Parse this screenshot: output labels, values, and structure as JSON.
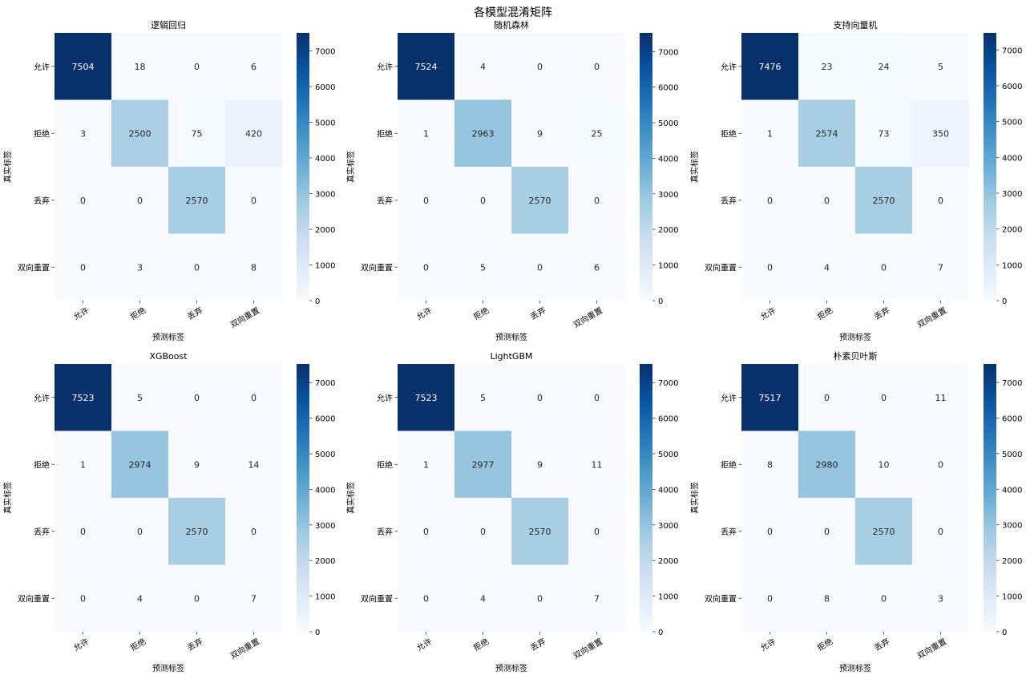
{
  "suptitle": "各模型混淆矩阵",
  "chart_data": [
    {
      "type": "heatmap",
      "title": "逻辑回归",
      "xlabel": "预测标签",
      "ylabel": "真实标签",
      "x_categories": [
        "允许",
        "拒绝",
        "丢弃",
        "双向重置"
      ],
      "y_categories": [
        "允许",
        "拒绝",
        "丢弃",
        "双向重置"
      ],
      "values": [
        [
          7504,
          18,
          0,
          6
        ],
        [
          3,
          2500,
          75,
          420
        ],
        [
          0,
          0,
          2570,
          0
        ],
        [
          0,
          3,
          0,
          8
        ]
      ],
      "colorbar": {
        "min": 0,
        "max": 7504,
        "ticks": [
          "0",
          "1000",
          "2000",
          "3000",
          "4000",
          "5000",
          "6000",
          "7000"
        ]
      },
      "colormap": "Blues"
    },
    {
      "type": "heatmap",
      "title": "随机森林",
      "xlabel": "预测标签",
      "ylabel": "真实标签",
      "x_categories": [
        "允许",
        "拒绝",
        "丢弃",
        "双向重置"
      ],
      "y_categories": [
        "允许",
        "拒绝",
        "丢弃",
        "双向重置"
      ],
      "values": [
        [
          7524,
          4,
          0,
          0
        ],
        [
          1,
          2963,
          9,
          25
        ],
        [
          0,
          0,
          2570,
          0
        ],
        [
          0,
          5,
          0,
          6
        ]
      ],
      "colorbar": {
        "min": 0,
        "max": 7524,
        "ticks": [
          "0",
          "1000",
          "2000",
          "3000",
          "4000",
          "5000",
          "6000",
          "7000"
        ]
      },
      "colormap": "Blues"
    },
    {
      "type": "heatmap",
      "title": "支持向量机",
      "xlabel": "预测标签",
      "ylabel": "真实标签",
      "x_categories": [
        "允许",
        "拒绝",
        "丢弃",
        "双向重置"
      ],
      "y_categories": [
        "允许",
        "拒绝",
        "丢弃",
        "双向重置"
      ],
      "values": [
        [
          7476,
          23,
          24,
          5
        ],
        [
          1,
          2574,
          73,
          350
        ],
        [
          0,
          0,
          2570,
          0
        ],
        [
          0,
          4,
          0,
          7
        ]
      ],
      "colorbar": {
        "min": 0,
        "max": 7476,
        "ticks": [
          "0",
          "1000",
          "2000",
          "3000",
          "4000",
          "5000",
          "6000",
          "7000"
        ]
      },
      "colormap": "Blues"
    },
    {
      "type": "heatmap",
      "title": "XGBoost",
      "xlabel": "预测标签",
      "ylabel": "真实标签",
      "x_categories": [
        "允许",
        "拒绝",
        "丢弃",
        "双向重置"
      ],
      "y_categories": [
        "允许",
        "拒绝",
        "丢弃",
        "双向重置"
      ],
      "values": [
        [
          7523,
          5,
          0,
          0
        ],
        [
          1,
          2974,
          9,
          14
        ],
        [
          0,
          0,
          2570,
          0
        ],
        [
          0,
          4,
          0,
          7
        ]
      ],
      "colorbar": {
        "min": 0,
        "max": 7523,
        "ticks": [
          "0",
          "1000",
          "2000",
          "3000",
          "4000",
          "5000",
          "6000",
          "7000"
        ]
      },
      "colormap": "Blues"
    },
    {
      "type": "heatmap",
      "title": "LightGBM",
      "xlabel": "预测标签",
      "ylabel": "真实标签",
      "x_categories": [
        "允许",
        "拒绝",
        "丢弃",
        "双向重置"
      ],
      "y_categories": [
        "允许",
        "拒绝",
        "丢弃",
        "双向重置"
      ],
      "values": [
        [
          7523,
          5,
          0,
          0
        ],
        [
          1,
          2977,
          9,
          11
        ],
        [
          0,
          0,
          2570,
          0
        ],
        [
          0,
          4,
          0,
          7
        ]
      ],
      "colorbar": {
        "min": 0,
        "max": 7523,
        "ticks": [
          "0",
          "1000",
          "2000",
          "3000",
          "4000",
          "5000",
          "6000",
          "7000"
        ]
      },
      "colormap": "Blues"
    },
    {
      "type": "heatmap",
      "title": "朴素贝叶斯",
      "xlabel": "预测标签",
      "ylabel": "真实标签",
      "x_categories": [
        "允许",
        "拒绝",
        "丢弃",
        "双向重置"
      ],
      "y_categories": [
        "允许",
        "拒绝",
        "丢弃",
        "双向重置"
      ],
      "values": [
        [
          7517,
          0,
          0,
          11
        ],
        [
          8,
          2980,
          10,
          0
        ],
        [
          0,
          0,
          2570,
          0
        ],
        [
          0,
          8,
          0,
          3
        ]
      ],
      "colorbar": {
        "min": 0,
        "max": 7517,
        "ticks": [
          "0",
          "1000",
          "2000",
          "3000",
          "4000",
          "5000",
          "6000",
          "7000"
        ]
      },
      "colormap": "Blues"
    }
  ]
}
